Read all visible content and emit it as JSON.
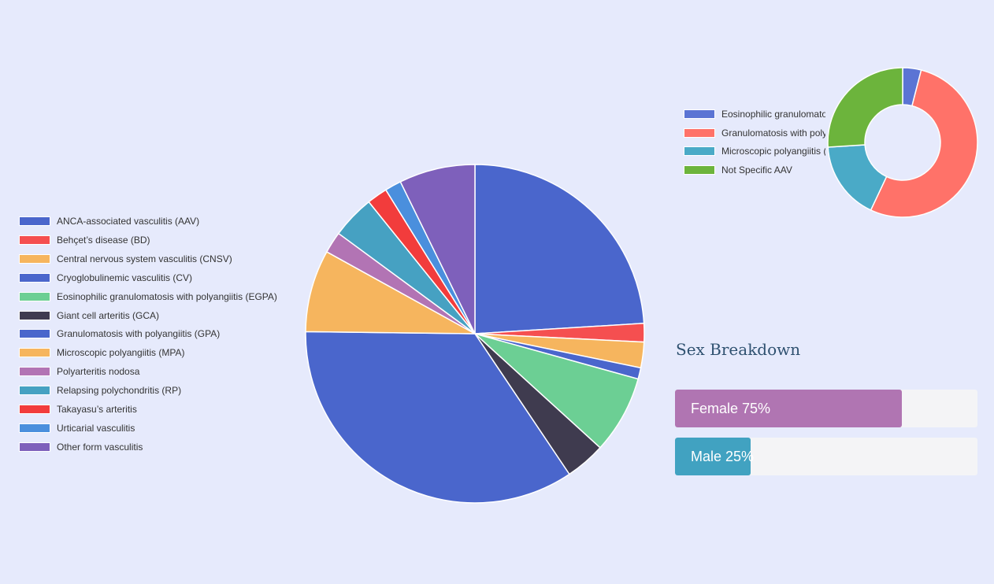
{
  "chart_data": [
    {
      "type": "pie",
      "categories": [
        "ANCA-associated vasculitis (AAV)",
        "Behçet’s disease (BD)",
        "Central nervous system vasculitis (CNSV)",
        "Cryoglobulinemic vasculitis (CV)",
        "Eosinophilic granulomatosis with polyangiitis (EGPA)",
        "Giant cell arteritis (GCA)",
        "Granulomatosis with polyangiitis (GPA)",
        "Microscopic polyangiitis (MPA)",
        "Polyarteritis nodosa",
        "Relapsing polychondritis (RP)",
        "Takayasu’s arteritis",
        "Urticarial vasculitis",
        "Other form vasculitis"
      ],
      "values": [
        24.5,
        1.8,
        2.5,
        1.1,
        7.6,
        3.9,
        35.3,
        8.0,
        2.1,
        4.2,
        2.0,
        1.6,
        7.4
      ],
      "colors": [
        "#4a66cc",
        "#f54f50",
        "#f6b55e",
        "#4a66cc",
        "#6ccf94",
        "#3f3b4f",
        "#4a66cc",
        "#f6b55e",
        "#b274b4",
        "#46a1c2",
        "#f23c3c",
        "#4a8fdd",
        "#7e60bb"
      ],
      "legend": "left",
      "title": ""
    },
    {
      "type": "pie",
      "subtype": "donut",
      "categories": [
        "Eosinophilic granulomatosis with polyangiitis (EGPA)",
        "Granulomatosis with polyangiitis (GPA)",
        "Microscopic polyangiitis (MPA)",
        "Not Specific AAV"
      ],
      "values": [
        4,
        53,
        17,
        26
      ],
      "colors": [
        "#5b74d4",
        "#ff7269",
        "#4aaac7",
        "#6cb43c"
      ],
      "legend": "left",
      "title": ""
    }
  ],
  "sex_breakdown": {
    "title": "Sex Breakdown",
    "bars": [
      {
        "label": "Female 75%",
        "value": 75,
        "color": "#b075b2"
      },
      {
        "label": "Male 25%",
        "value": 25,
        "color": "#41a2c1"
      }
    ]
  }
}
